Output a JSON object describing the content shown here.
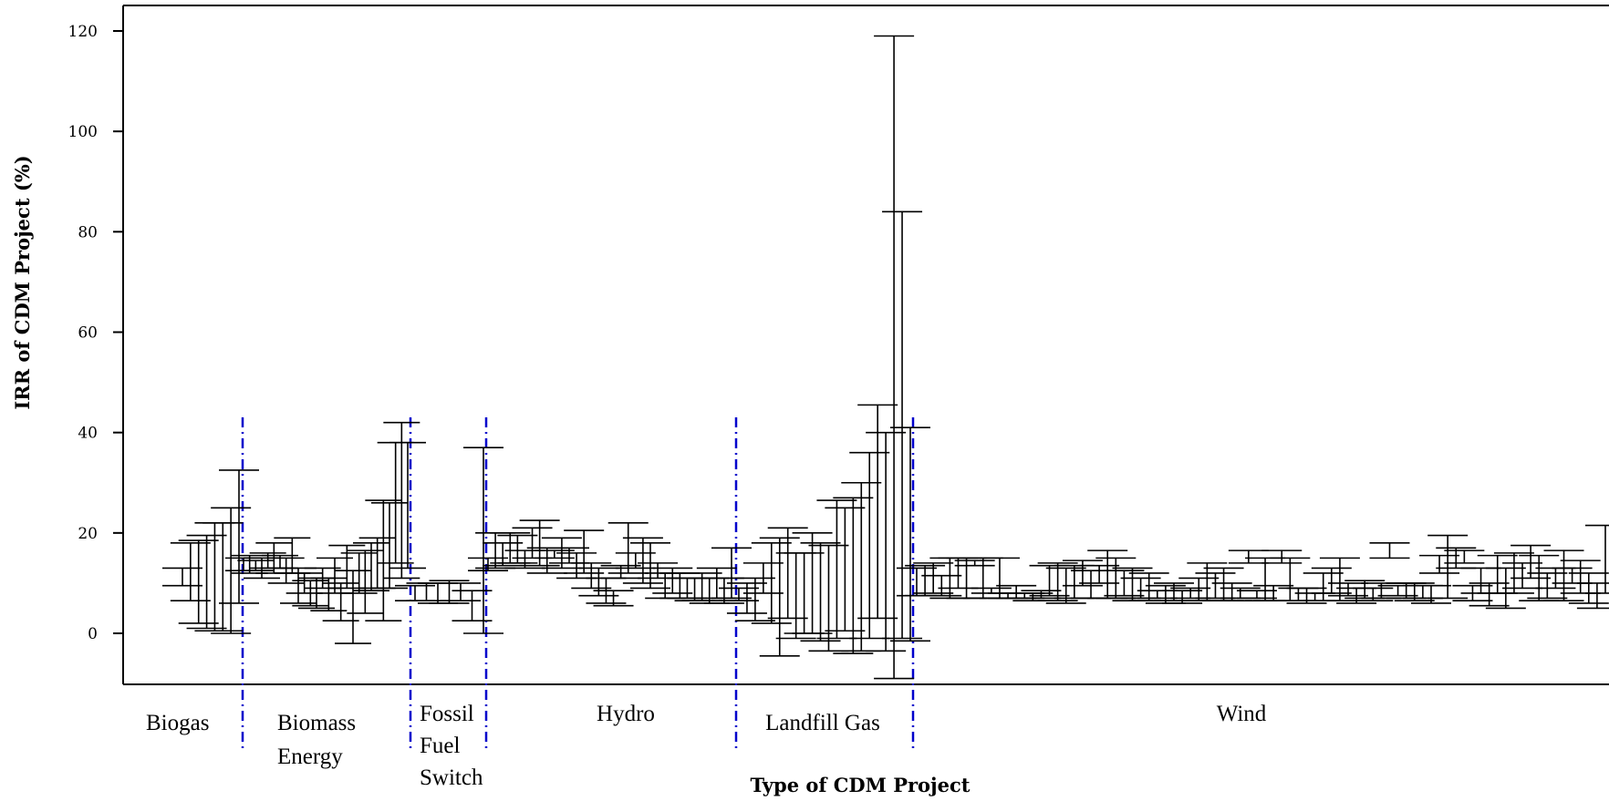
{
  "chart_data": {
    "type": "errorbar",
    "xlabel": "Type of CDM Project",
    "ylabel": "IRR of CDM Project (%)",
    "ylim": [
      -10,
      125
    ],
    "yticks": [
      0,
      20,
      40,
      60,
      80,
      100,
      120
    ],
    "ytick_labels": [
      "0",
      "20",
      "40",
      "60",
      "80",
      "100",
      "120"
    ],
    "grid": false,
    "separator_color": "#0000cc",
    "bar_color": "#000000",
    "categories": [
      {
        "label_lines": [
          "Biogas"
        ],
        "bars": [
          [
            9.5,
            13
          ],
          [
            6.5,
            18
          ],
          [
            2,
            18.5
          ],
          [
            1,
            19.5
          ],
          [
            0.5,
            22
          ],
          [
            0.5,
            22
          ],
          [
            0,
            25
          ],
          [
            6,
            32.5
          ]
        ]
      },
      {
        "label_lines": [
          "Biomass",
          "Energy"
        ],
        "bars": [
          [
            12.5,
            15
          ],
          [
            12,
            15.5
          ],
          [
            12.5,
            14.5
          ],
          [
            11,
            15
          ],
          [
            13,
            16
          ],
          [
            12,
            18
          ],
          [
            13,
            15.5
          ],
          [
            10,
            15
          ],
          [
            12,
            19
          ],
          [
            6,
            13
          ],
          [
            8,
            12
          ],
          [
            5.5,
            10.5
          ],
          [
            5,
            11
          ],
          [
            9,
            13
          ],
          [
            4.5,
            11
          ],
          [
            8,
            15
          ],
          [
            2.5,
            10
          ],
          [
            9,
            17.5
          ],
          [
            -2,
            12.5
          ],
          [
            8,
            16
          ],
          [
            4,
            16.5
          ],
          [
            8.5,
            18
          ],
          [
            9,
            19
          ],
          [
            2.5,
            26.5
          ],
          [
            9,
            26
          ],
          [
            14,
            38
          ],
          [
            11,
            42
          ],
          [
            13,
            38
          ]
        ]
      },
      {
        "label_lines": [
          "Fossil",
          "Fuel",
          "Switch"
        ],
        "bars": [
          [
            6.5,
            9.5
          ],
          [
            6.5,
            10
          ],
          [
            6,
            10
          ],
          [
            6,
            10.5
          ],
          [
            6.5,
            10
          ],
          [
            2.5,
            8.5
          ],
          [
            0,
            37
          ]
        ]
      },
      {
        "label_lines": [
          "Hydro"
        ],
        "bars": [
          [
            12.5,
            15
          ],
          [
            13,
            20
          ],
          [
            13.5,
            18
          ],
          [
            14,
            20
          ],
          [
            14,
            19.5
          ],
          [
            13,
            16.5
          ],
          [
            15,
            21
          ],
          [
            13.5,
            22.5
          ],
          [
            12,
            17
          ],
          [
            15,
            16.5
          ],
          [
            13,
            19
          ],
          [
            14,
            17
          ],
          [
            11,
            16
          ],
          [
            12,
            20.5
          ],
          [
            9,
            14
          ],
          [
            7.5,
            13
          ],
          [
            6,
            11
          ],
          [
            5.5,
            8.5
          ],
          [
            11,
            13.5
          ],
          [
            12,
            22
          ],
          [
            13,
            16
          ],
          [
            10,
            19
          ],
          [
            9,
            18
          ],
          [
            11,
            14
          ],
          [
            7,
            12
          ],
          [
            8,
            13
          ],
          [
            7,
            12
          ],
          [
            7,
            11
          ],
          [
            6.5,
            11
          ],
          [
            6.5,
            12
          ],
          [
            6,
            11
          ],
          [
            7,
            13
          ],
          [
            6,
            11
          ],
          [
            7,
            17
          ]
        ]
      },
      {
        "label_lines": [
          "Landfill Gas"
        ],
        "bars": [
          [
            6.5,
            9
          ],
          [
            4,
            10
          ],
          [
            2.5,
            11
          ],
          [
            8,
            14
          ],
          [
            2,
            18
          ],
          [
            -4.5,
            19
          ],
          [
            3,
            21
          ],
          [
            -1,
            16
          ],
          [
            0,
            16
          ],
          [
            0,
            20
          ],
          [
            -1.5,
            18
          ],
          [
            -3.5,
            17.5
          ],
          [
            -1,
            26.5
          ],
          [
            0.5,
            25
          ],
          [
            -4,
            27
          ],
          [
            -3.5,
            30
          ],
          [
            -1,
            36
          ],
          [
            3,
            45.5
          ],
          [
            -3.5,
            40
          ],
          [
            -9,
            119
          ],
          [
            -1,
            84
          ],
          [
            -1.5,
            41
          ]
        ]
      },
      {
        "label_lines": [
          "Wind"
        ],
        "bars": [
          [
            7.5,
            13
          ],
          [
            7.5,
            13.5
          ],
          [
            8,
            14
          ],
          [
            7.5,
            11.5
          ],
          [
            7,
            15
          ],
          [
            9,
            15
          ],
          [
            7,
            15
          ],
          [
            13.5,
            14.5
          ],
          [
            7,
            15
          ],
          [
            8,
            9
          ],
          [
            7,
            15
          ],
          [
            7,
            8
          ],
          [
            7,
            9.5
          ],
          [
            7,
            8
          ],
          [
            6.5,
            8
          ],
          [
            7,
            8.5
          ],
          [
            7.5,
            13.5
          ],
          [
            6.5,
            14
          ],
          [
            6,
            13
          ],
          [
            7,
            13.5
          ],
          [
            9.5,
            14.5
          ],
          [
            7,
            12.5
          ],
          [
            10,
            13.5
          ],
          [
            7,
            16.5
          ],
          [
            7,
            15
          ],
          [
            7.5,
            12.5
          ],
          [
            6.5,
            13
          ],
          [
            7,
            11
          ],
          [
            6.5,
            12
          ],
          [
            7,
            8.5
          ],
          [
            6,
            9.5
          ],
          [
            6.5,
            10
          ],
          [
            6,
            8.5
          ],
          [
            7,
            9
          ],
          [
            6.5,
            11
          ],
          [
            6.5,
            14
          ],
          [
            7,
            12
          ],
          [
            6.5,
            13
          ],
          [
            6.5,
            10
          ],
          [
            7,
            9
          ],
          [
            14,
            16.5
          ],
          [
            7,
            8.5
          ],
          [
            6.5,
            15
          ],
          [
            6.5,
            9.5
          ],
          [
            14,
            16.5
          ],
          [
            6.5,
            15
          ],
          [
            6.5,
            9
          ],
          [
            6,
            9
          ],
          [
            6.5,
            8
          ],
          [
            6.5,
            12
          ],
          [
            8,
            13
          ],
          [
            6.5,
            15
          ],
          [
            7.5,
            10
          ],
          [
            6,
            9
          ],
          [
            7,
            10.5
          ],
          [
            6.5,
            9
          ],
          [
            7,
            10
          ],
          [
            15,
            18
          ],
          [
            7.5,
            9.5
          ],
          [
            7,
            10
          ],
          [
            6.5,
            10
          ],
          [
            7,
            9.5
          ],
          [
            6,
            9.5
          ],
          [
            12,
            15.5
          ],
          [
            7,
            19.5
          ],
          [
            13,
            17
          ],
          [
            14,
            16.5
          ],
          [
            6.5,
            9.5
          ],
          [
            8,
            13
          ],
          [
            5.5,
            10
          ],
          [
            8,
            15.5
          ],
          [
            5,
            13
          ],
          [
            8,
            16
          ],
          [
            9,
            14
          ],
          [
            11,
            17.5
          ],
          [
            6.5,
            15.5
          ],
          [
            7,
            12
          ],
          [
            9,
            13
          ],
          [
            6.5,
            16.5
          ],
          [
            10,
            13
          ],
          [
            8,
            14.5
          ],
          [
            6,
            12
          ],
          [
            5,
            10
          ],
          [
            8,
            21.5
          ]
        ]
      }
    ]
  }
}
